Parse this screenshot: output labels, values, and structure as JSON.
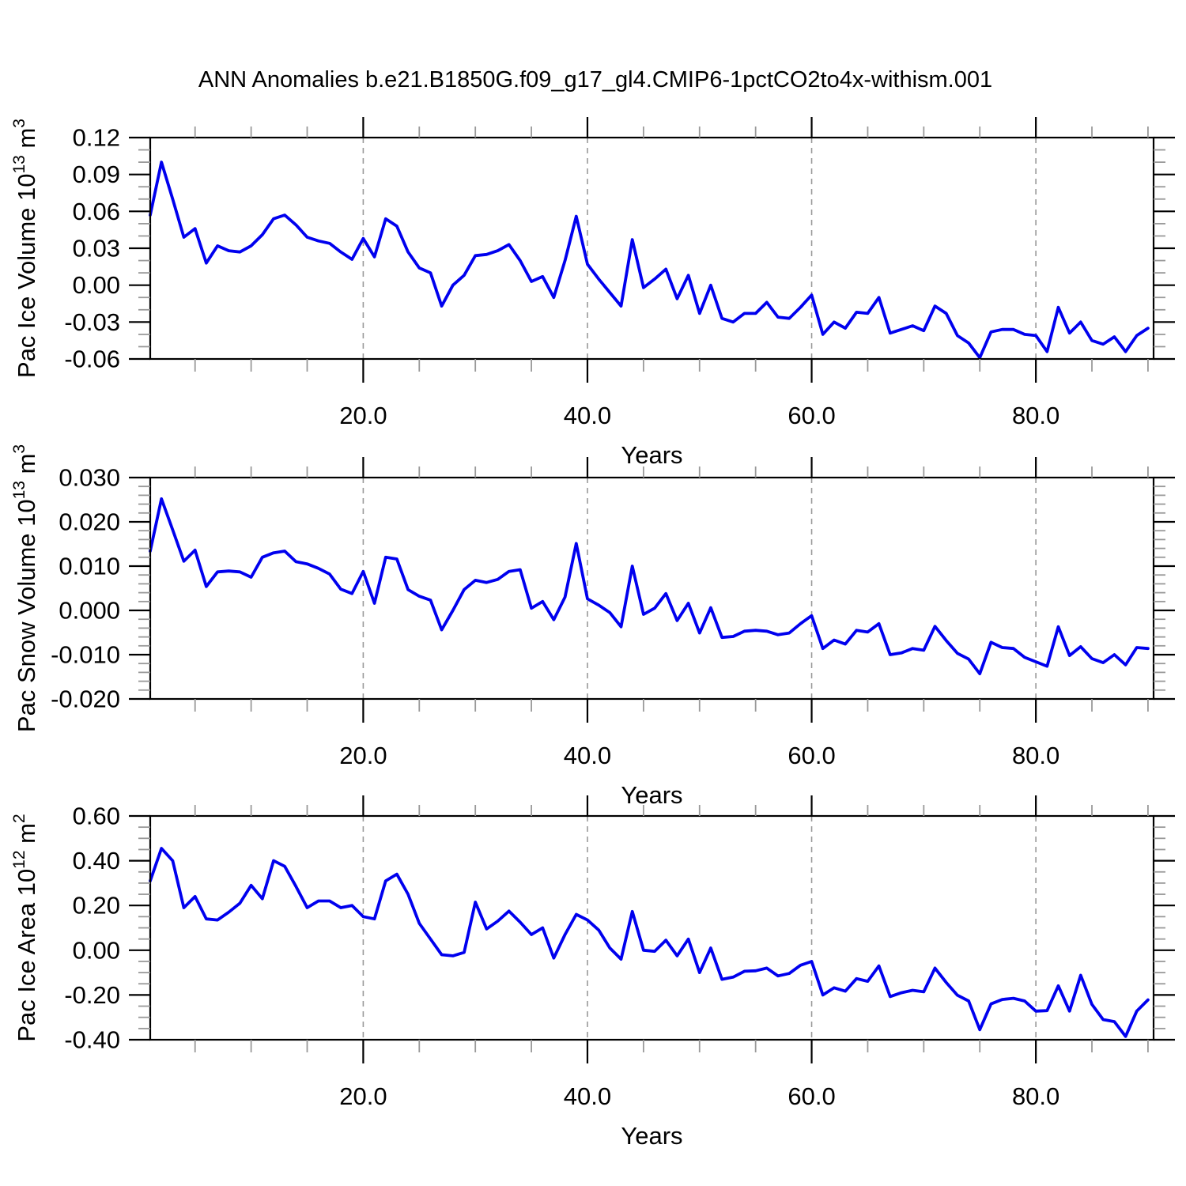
{
  "title": "ANN Anomalies b.e21.B1850G.f09_g17_gl4.CMIP6-1pctCO2to4x-withism.001",
  "chart_data": {
    "type": "line",
    "title": "ANN Anomalies b.e21.B1850G.f09_g17_gl4.CMIP6-1pctCO2to4x-withism.001",
    "line_color": "#0000ee",
    "grid_color": "#999999",
    "minor_tick_color": "#999999",
    "xlabel": "Years",
    "x_start": 1,
    "x_step": 1,
    "xlim": [
      1,
      90.5
    ],
    "xticks": {
      "values": [
        20,
        40,
        60,
        80
      ],
      "labels": [
        "20.0",
        "40.0",
        "60.0",
        "80.0"
      ]
    },
    "xtick_minor_step": 5,
    "grid": {
      "vertical_dashed_at_major_xticks": true
    },
    "legend": "none",
    "panels": [
      {
        "id": "pac-ice-volume",
        "ylabel": "Pac Ice Volume 10^13 m^3",
        "ylabel_parts": [
          {
            "text": "Pac Ice Volume 10",
            "sup": false
          },
          {
            "text": "13",
            "sup": true
          },
          {
            "text": " m",
            "sup": false
          },
          {
            "text": "3",
            "sup": true
          }
        ],
        "ylim": [
          -0.06,
          0.12
        ],
        "yticks": {
          "values": [
            0.12,
            0.09,
            0.06,
            0.03,
            0.0,
            -0.03,
            -0.06
          ],
          "labels": [
            "0.12",
            "0.09",
            "0.06",
            "0.03",
            "0.00",
            "-0.03",
            "-0.06"
          ]
        },
        "ytick_minor_step": 0.01,
        "values": [
          0.057,
          0.1,
          0.07,
          0.039,
          0.046,
          0.018,
          0.032,
          0.028,
          0.027,
          0.032,
          0.041,
          0.054,
          0.057,
          0.049,
          0.039,
          0.036,
          0.034,
          0.027,
          0.021,
          0.038,
          0.023,
          0.054,
          0.048,
          0.027,
          0.014,
          0.01,
          -0.017,
          0.0,
          0.008,
          0.024,
          0.025,
          0.028,
          0.033,
          0.02,
          0.003,
          0.007,
          -0.01,
          0.02,
          0.056,
          0.017,
          0.005,
          -0.006,
          -0.017,
          0.037,
          -0.002,
          0.005,
          0.013,
          -0.011,
          0.008,
          -0.023,
          0.0,
          -0.027,
          -0.03,
          -0.023,
          -0.023,
          -0.014,
          -0.026,
          -0.027,
          -0.018,
          -0.008,
          -0.04,
          -0.03,
          -0.035,
          -0.022,
          -0.023,
          -0.01,
          -0.039,
          -0.036,
          -0.033,
          -0.037,
          -0.017,
          -0.023,
          -0.041,
          -0.047,
          -0.059,
          -0.038,
          -0.036,
          -0.036,
          -0.04,
          -0.041,
          -0.054,
          -0.018,
          -0.039,
          -0.03,
          -0.045,
          -0.048,
          -0.042,
          -0.054,
          -0.041,
          -0.035
        ]
      },
      {
        "id": "pac-snow-volume",
        "ylabel": "Pac Snow Volume 10^13 m^3",
        "ylabel_parts": [
          {
            "text": "Pac Snow Volume 10",
            "sup": false
          },
          {
            "text": "13",
            "sup": true
          },
          {
            "text": " m",
            "sup": false
          },
          {
            "text": "3",
            "sup": true
          }
        ],
        "ylim": [
          -0.02,
          0.03
        ],
        "yticks": {
          "values": [
            0.03,
            0.02,
            0.01,
            0.0,
            -0.01,
            -0.02
          ],
          "labels": [
            "0.030",
            "0.020",
            "0.010",
            "0.000",
            "-0.010",
            "-0.020"
          ]
        },
        "ytick_minor_step": 0.002,
        "values": [
          0.0134,
          0.0252,
          0.0182,
          0.0111,
          0.0136,
          0.0054,
          0.0087,
          0.0089,
          0.0087,
          0.0075,
          0.012,
          0.013,
          0.0134,
          0.011,
          0.0105,
          0.0095,
          0.0082,
          0.0048,
          0.0038,
          0.0088,
          0.0016,
          0.012,
          0.0116,
          0.0047,
          0.0032,
          0.0023,
          -0.0044,
          0.0,
          0.0047,
          0.0068,
          0.0063,
          0.007,
          0.0088,
          0.0092,
          0.0005,
          0.002,
          -0.0021,
          0.003,
          0.0151,
          0.0026,
          0.0012,
          -0.0005,
          -0.0037,
          0.01,
          -0.0009,
          0.0005,
          0.0038,
          -0.0023,
          0.0016,
          -0.0051,
          0.0006,
          -0.0061,
          -0.0059,
          -0.0047,
          -0.0045,
          -0.0047,
          -0.0055,
          -0.0051,
          -0.003,
          -0.0012,
          -0.0086,
          -0.0067,
          -0.0076,
          -0.0045,
          -0.0049,
          -0.003,
          -0.01,
          -0.0096,
          -0.0086,
          -0.009,
          -0.0036,
          -0.0068,
          -0.0097,
          -0.011,
          -0.0143,
          -0.0072,
          -0.0084,
          -0.0086,
          -0.0106,
          -0.0116,
          -0.0126,
          -0.0037,
          -0.0102,
          -0.0082,
          -0.0109,
          -0.0118,
          -0.01,
          -0.0123,
          -0.0084,
          -0.0086
        ]
      },
      {
        "id": "pac-ice-area",
        "ylabel": "Pac Ice Area 10^12 m^2",
        "ylabel_parts": [
          {
            "text": "Pac Ice Area 10",
            "sup": false
          },
          {
            "text": "12",
            "sup": true
          },
          {
            "text": " m",
            "sup": false
          },
          {
            "text": "2",
            "sup": true
          }
        ],
        "ylim": [
          -0.4,
          0.6
        ],
        "yticks": {
          "values": [
            0.6,
            0.4,
            0.2,
            0.0,
            -0.2,
            -0.4
          ],
          "labels": [
            "0.60",
            "0.40",
            "0.20",
            "0.00",
            "-0.20",
            "-0.40"
          ]
        },
        "ytick_minor_step": 0.05,
        "values": [
          0.31,
          0.455,
          0.4,
          0.19,
          0.24,
          0.14,
          0.135,
          0.17,
          0.21,
          0.29,
          0.23,
          0.4,
          0.375,
          0.285,
          0.19,
          0.22,
          0.22,
          0.19,
          0.2,
          0.15,
          0.14,
          0.31,
          0.34,
          0.25,
          0.12,
          0.05,
          -0.02,
          -0.025,
          -0.01,
          0.215,
          0.095,
          0.13,
          0.175,
          0.125,
          0.07,
          0.1,
          -0.035,
          0.07,
          0.16,
          0.135,
          0.09,
          0.01,
          -0.04,
          0.173,
          0.0,
          -0.005,
          0.045,
          -0.025,
          0.05,
          -0.1,
          0.01,
          -0.13,
          -0.12,
          -0.094,
          -0.092,
          -0.08,
          -0.115,
          -0.104,
          -0.067,
          -0.05,
          -0.2,
          -0.168,
          -0.183,
          -0.127,
          -0.139,
          -0.07,
          -0.207,
          -0.19,
          -0.179,
          -0.186,
          -0.08,
          -0.144,
          -0.201,
          -0.227,
          -0.355,
          -0.24,
          -0.22,
          -0.215,
          -0.227,
          -0.272,
          -0.27,
          -0.159,
          -0.272,
          -0.112,
          -0.242,
          -0.31,
          -0.319,
          -0.385,
          -0.272,
          -0.222
        ]
      }
    ]
  }
}
